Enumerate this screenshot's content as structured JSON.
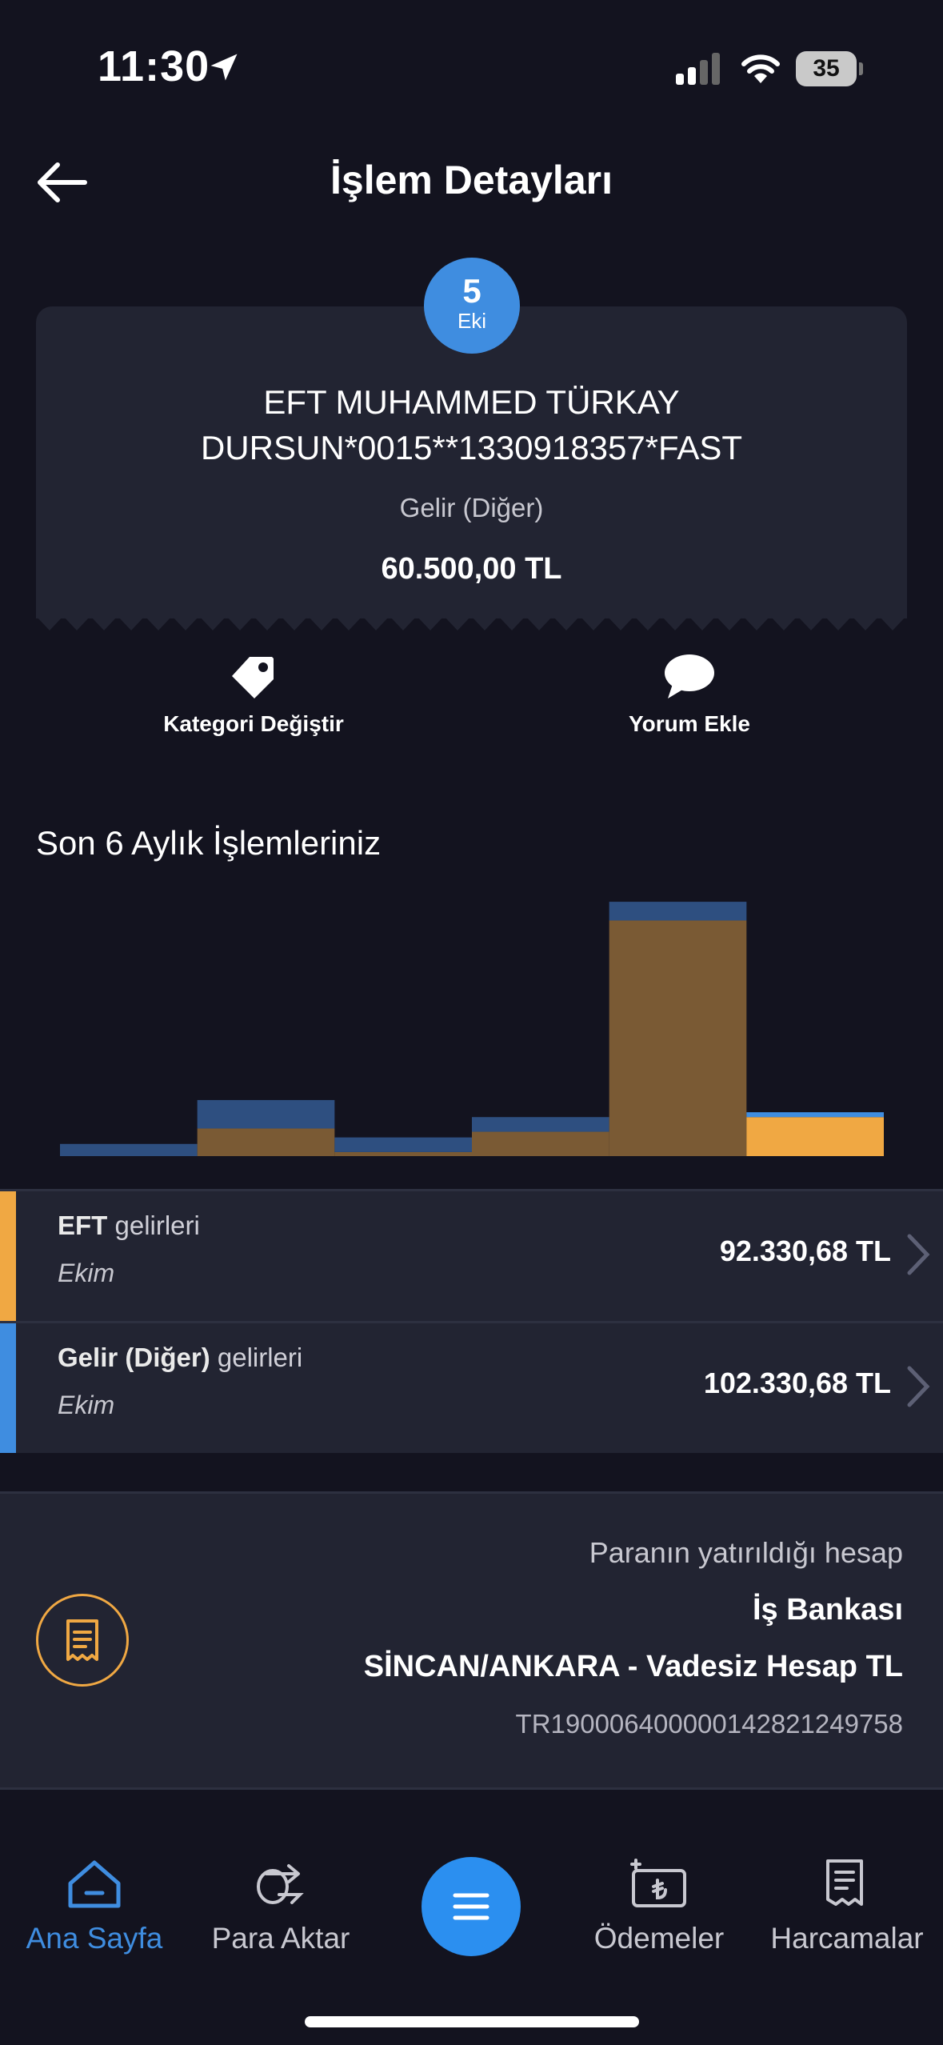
{
  "status_bar": {
    "time": "11:30",
    "battery": "35"
  },
  "header": {
    "title": "İşlem Detayları"
  },
  "transaction": {
    "date_day": "5",
    "date_month": "Eki",
    "title_line1": "EFT MUHAMMED TÜRKAY",
    "title_line2": "DURSUN*0015**1330918357*FAST",
    "category": "Gelir (Diğer)",
    "amount": "60.500,00 TL"
  },
  "actions": {
    "change_category": "Kategori Değiştir",
    "add_comment": "Yorum Ekle"
  },
  "chart_section": {
    "title": "Son 6 Aylık İşlemleriniz"
  },
  "chart_data": {
    "type": "bar",
    "stacked": true,
    "series": [
      {
        "color": "#7a5a34",
        "values": [
          0,
          34,
          5,
          30,
          290,
          0
        ]
      },
      {
        "color": "#2e4f80",
        "values": [
          15,
          35,
          18,
          18,
          23,
          0
        ]
      },
      {
        "color": "#f0a843",
        "values": [
          0,
          0,
          0,
          0,
          0,
          48
        ]
      },
      {
        "color": "#3f8de0",
        "values": [
          0,
          0,
          0,
          0,
          0,
          6
        ]
      }
    ],
    "categories": [
      "",
      "",
      "",
      "",
      "",
      ""
    ],
    "ylim": [
      0,
      320
    ],
    "grid": false,
    "legend": "none"
  },
  "rows": [
    {
      "name_bold": "EFT",
      "name_rest": " gelirleri",
      "month": "Ekim",
      "amount": "92.330,68 TL",
      "color": "#f0a843"
    },
    {
      "name_bold": "Gelir (Diğer)",
      "name_rest": " gelirleri",
      "month": "Ekim",
      "amount": "102.330,68 TL",
      "color": "#3f8de0"
    }
  ],
  "account": {
    "label": "Paranın yatırıldığı hesap",
    "bank": "İş Bankası",
    "branch": "SİNCAN/ANKARA - Vadesiz Hesap TL",
    "iban": "TR190006400000142821249758"
  },
  "tabbar": {
    "home": "Ana Sayfa",
    "transfer": "Para Aktar",
    "payments": "Ödemeler",
    "expenses": "Harcamalar"
  },
  "colors": {
    "background": "#13131f",
    "card": "#222432",
    "accent_blue": "#3f8de0",
    "accent_orange": "#f0a843"
  },
  "icons": {
    "back": "arrow-left-icon",
    "tag": "tag-icon",
    "comment": "speech-bubble-icon",
    "receipt": "receipt-icon",
    "home": "home-icon",
    "transfer": "coin-transfer-icon",
    "payments": "lira-bill-icon",
    "expenses": "receipt-list-icon",
    "menu": "hamburger-icon"
  }
}
